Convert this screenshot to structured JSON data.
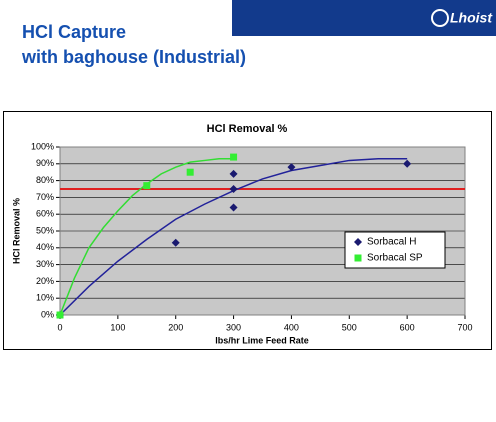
{
  "slide": {
    "title_lines": [
      "HCl Capture",
      "with baghouse (Industrial)"
    ],
    "logo": "Lhoist"
  },
  "chart_data": {
    "type": "scatter",
    "title": "HCl Removal %",
    "x_label": "lbs/hr Lime Feed Rate",
    "y_label": "HCl Removal %",
    "xlim": [
      0,
      700
    ],
    "xticks": [
      0,
      100,
      200,
      300,
      400,
      500,
      600,
      700
    ],
    "ylim": [
      0,
      100
    ],
    "yticks": [
      {
        "value": 0,
        "label": "0%"
      },
      {
        "value": 10,
        "label": "10%"
      },
      {
        "value": 20,
        "label": "20%"
      },
      {
        "value": 30,
        "label": "30%"
      },
      {
        "value": 40,
        "label": "40%"
      },
      {
        "value": 50,
        "label": "50%"
      },
      {
        "value": 60,
        "label": "60%"
      },
      {
        "value": 70,
        "label": "70%"
      },
      {
        "value": 80,
        "label": "80%"
      },
      {
        "value": 90,
        "label": "90%"
      },
      {
        "value": 100,
        "label": "100%"
      }
    ],
    "grid": true,
    "legend": "right",
    "reference_line": {
      "value": 75,
      "color": "#e02020"
    },
    "series": [
      {
        "name": "Sorbacal H",
        "color": "#1a1a70",
        "marker": "diamond",
        "x": [
          0,
          200,
          300,
          300,
          300,
          400,
          600
        ],
        "values": [
          0,
          43,
          64,
          75,
          84,
          88,
          90
        ],
        "trend_color": "#22229a",
        "trend_x": [
          0,
          50,
          100,
          150,
          200,
          250,
          300,
          350,
          400,
          450,
          500,
          550,
          600
        ],
        "trend_values": [
          0,
          17,
          32,
          45,
          57,
          66,
          74,
          81,
          86,
          89,
          92,
          93,
          93
        ]
      },
      {
        "name": "Sorbacal SP",
        "color": "#33ee33",
        "marker": "square",
        "x": [
          0,
          150,
          225,
          300
        ],
        "values": [
          0,
          77,
          85,
          94
        ],
        "trend_color": "#33dd33",
        "trend_x": [
          0,
          25,
          50,
          75,
          100,
          125,
          150,
          175,
          200,
          225,
          250,
          275,
          300
        ],
        "trend_values": [
          0,
          22,
          40,
          52,
          62,
          71,
          78,
          84,
          88,
          91,
          92,
          93,
          93
        ]
      }
    ]
  }
}
